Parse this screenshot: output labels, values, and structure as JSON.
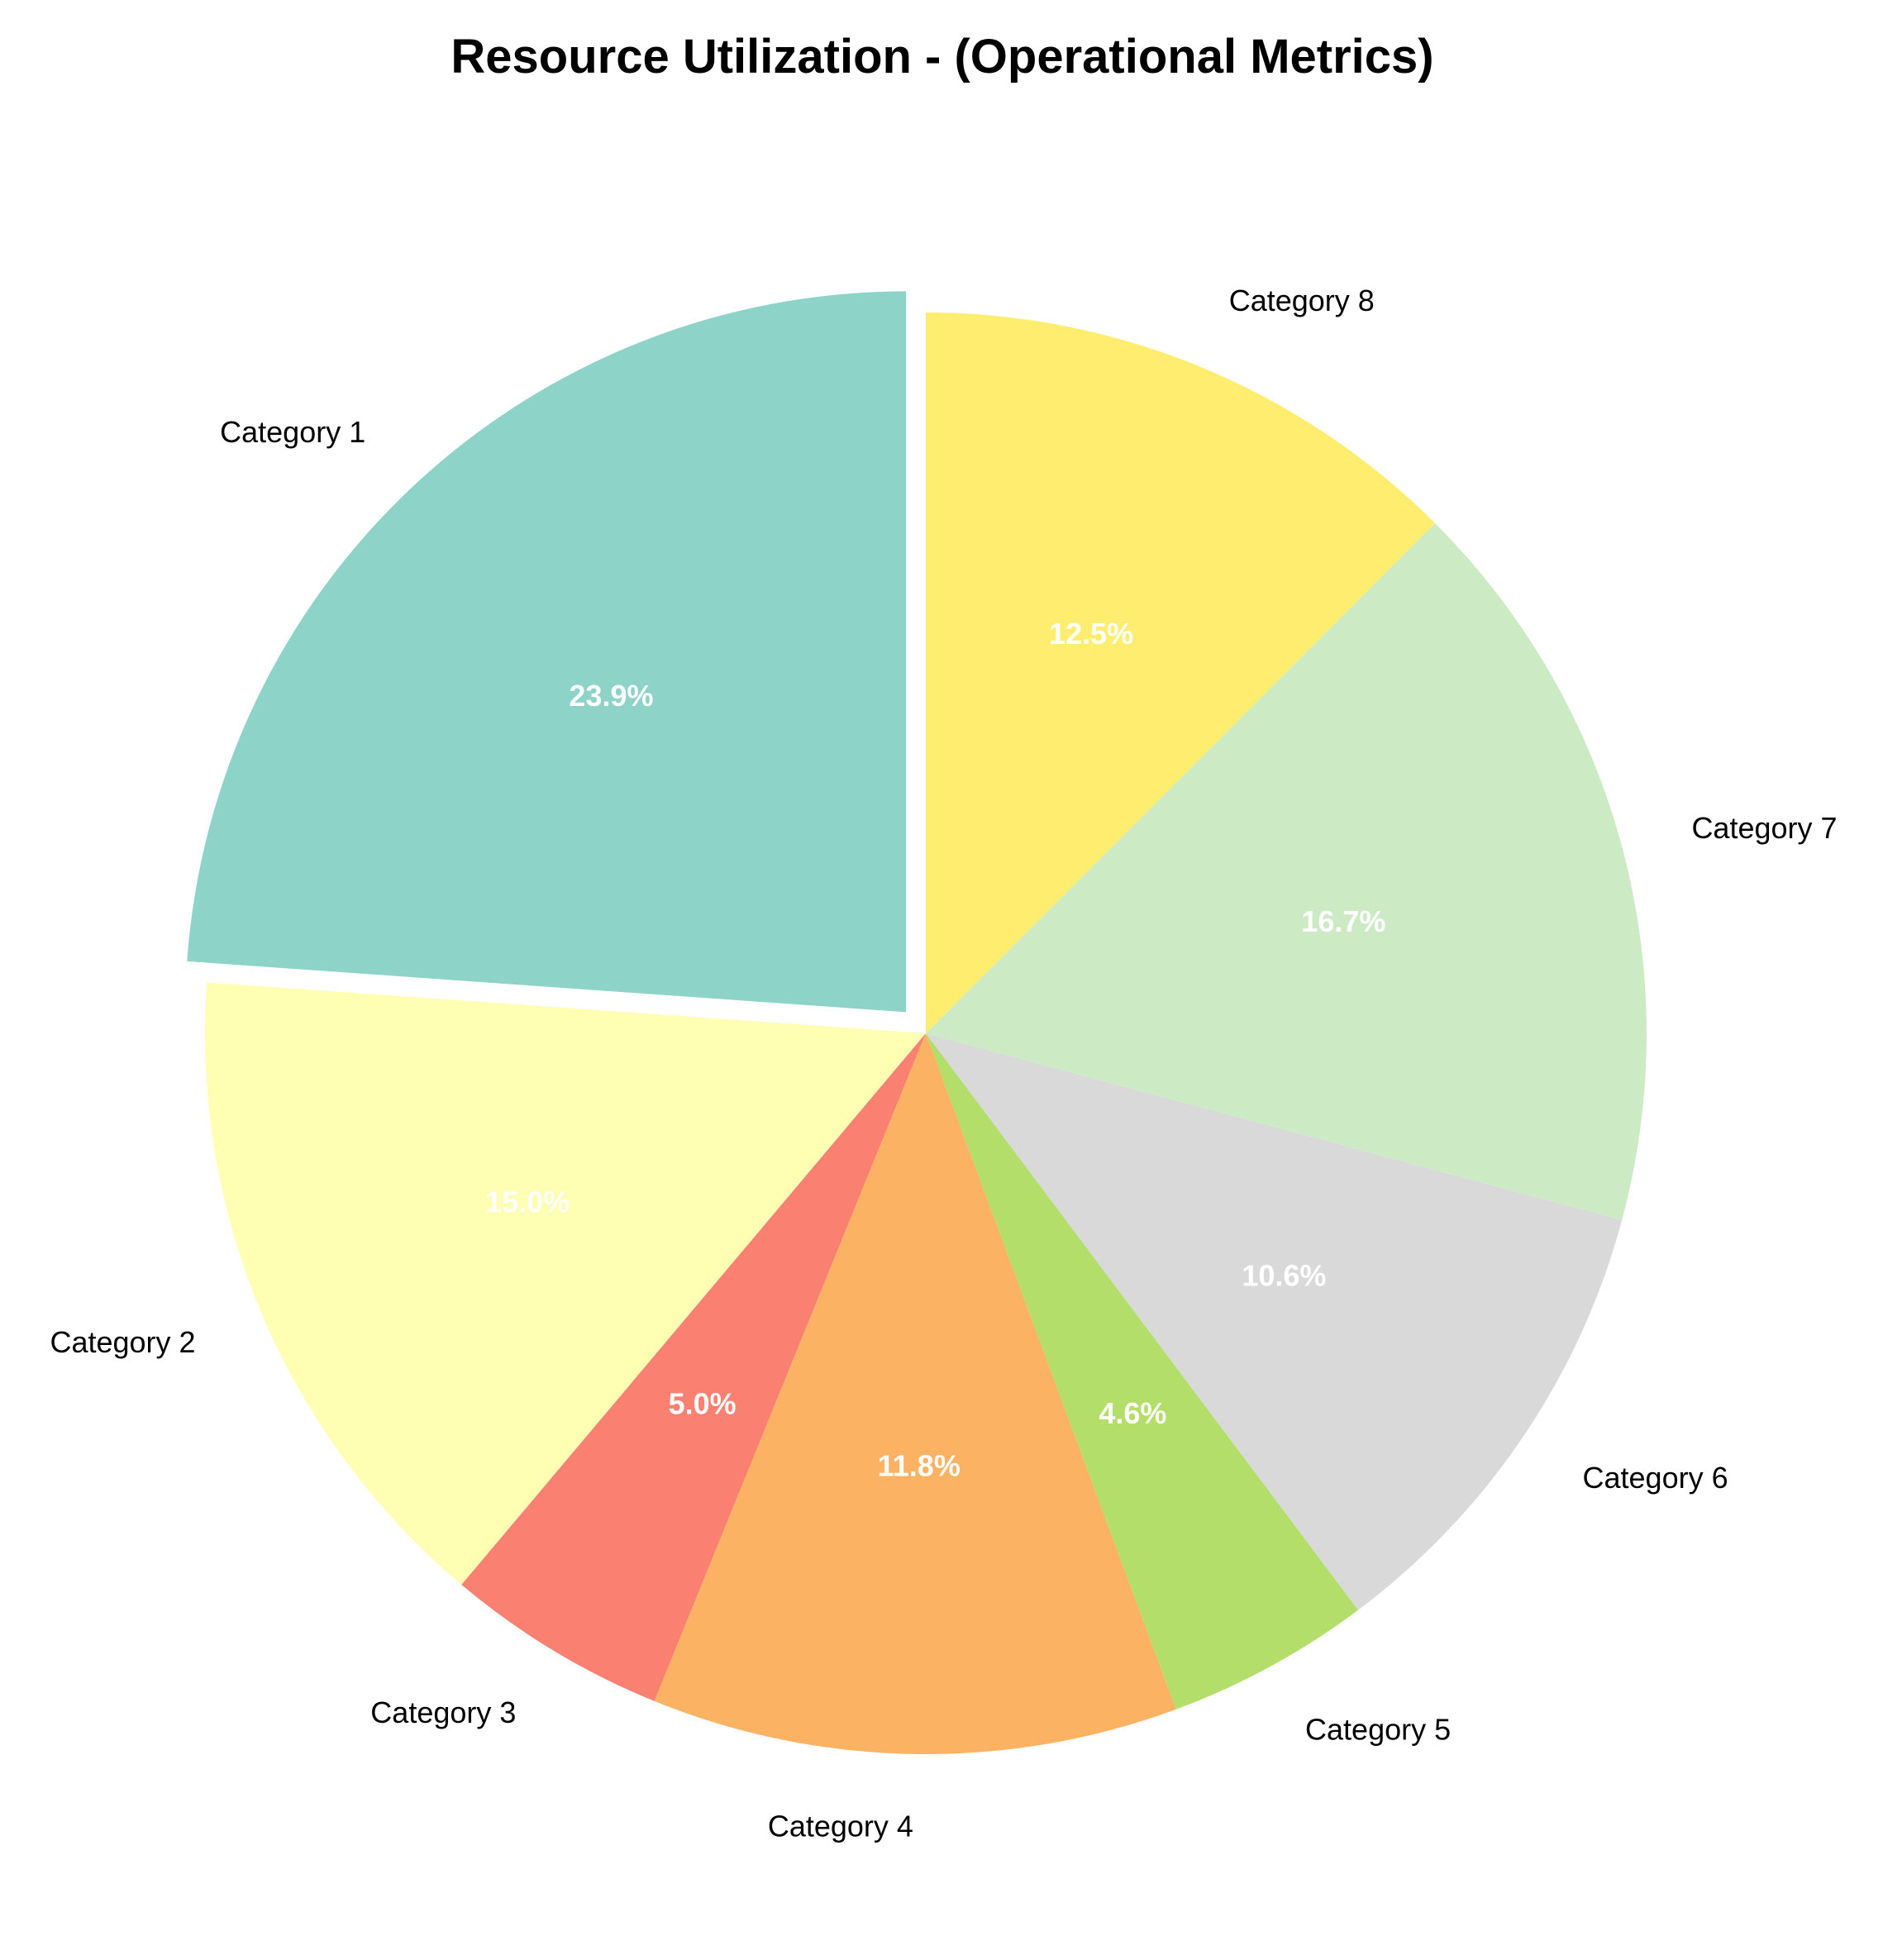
{
  "chart_data": {
    "type": "pie",
    "title": "Resource Utilization - (Operational Metrics)",
    "categories": [
      "Category 1",
      "Category 2",
      "Category 3",
      "Category 4",
      "Category 5",
      "Category 6",
      "Category 7",
      "Category 8"
    ],
    "values": [
      23.9,
      15.0,
      5.0,
      11.8,
      4.6,
      10.6,
      16.7,
      12.5
    ],
    "value_labels": [
      "23.9%",
      "15.0%",
      "5.0%",
      "11.8%",
      "4.6%",
      "10.6%",
      "16.7%",
      "12.5%"
    ],
    "colors": [
      "#8dd3c7",
      "#ffffb3",
      "#fa8072",
      "#fbb363",
      "#b3de69",
      "#d9d9d9",
      "#ccebc5",
      "#ffed6f"
    ],
    "start_angle_deg": 90,
    "direction": "counterclockwise",
    "exploded": [
      "Category 1"
    ],
    "legend": "none"
  }
}
